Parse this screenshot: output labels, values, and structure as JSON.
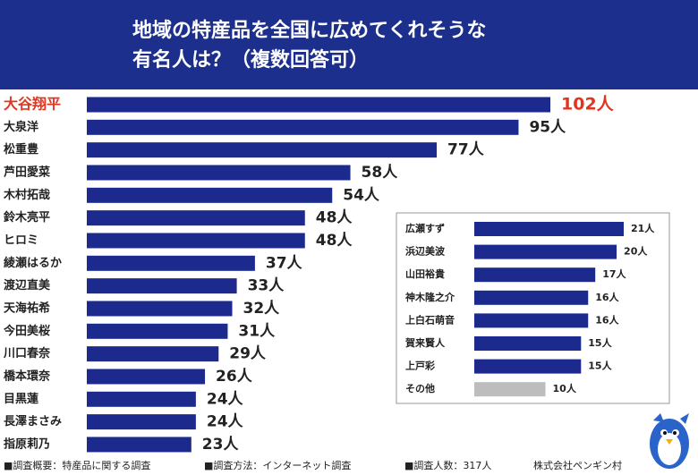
{
  "chart_data": [
    {
      "type": "bar",
      "orientation": "horizontal",
      "title": [
        "地域の特産品を全国に広めてくれそうな",
        "有名人は？（複数回答可）"
      ],
      "categories": [
        "大谷翔平",
        "大泉洋",
        "松重豊",
        "芦田愛菜",
        "木村拓哉",
        "鈴木亮平",
        "ヒロミ",
        "綾瀬はるか",
        "渡辺直美",
        "天海祐希",
        "今田美桜",
        "川口春奈",
        "橋本環奈",
        "目黒蓮",
        "長澤まさみ",
        "指原莉乃"
      ],
      "values": [
        102,
        95,
        77,
        58,
        54,
        48,
        48,
        37,
        33,
        32,
        31,
        29,
        26,
        24,
        24,
        23
      ],
      "value_labels": [
        "102人",
        "95人",
        "77人",
        "58人",
        "54人",
        "48人",
        "48人",
        "37人",
        "33人",
        "32人",
        "31人",
        "29人",
        "26人",
        "24人",
        "24人",
        "23人"
      ],
      "color": "#1c2a8e",
      "highlight": {
        "index": 0,
        "color": "#e3341f"
      }
    },
    {
      "type": "bar",
      "orientation": "horizontal",
      "categories": [
        "広瀬すず",
        "浜辺美波",
        "山田裕貴",
        "神木隆之介",
        "上白石萌音",
        "賀来賢人",
        "上戸彩",
        "その他"
      ],
      "values": [
        21,
        20,
        17,
        16,
        16,
        15,
        15,
        10
      ],
      "value_labels": [
        "21人",
        "20人",
        "17人",
        "16人",
        "16人",
        "15人",
        "15人",
        "10人"
      ],
      "colors": [
        "#1c2a8e",
        "#1c2a8e",
        "#1c2a8e",
        "#1c2a8e",
        "#1c2a8e",
        "#1c2a8e",
        "#1c2a8e",
        "#bdbdbd"
      ]
    }
  ],
  "footer": [
    "■調査概要：特産品に関する調査",
    "■調査方法：インターネット調査",
    "■調査人数：317人"
  ],
  "credit": "株式会社ペンギン村"
}
